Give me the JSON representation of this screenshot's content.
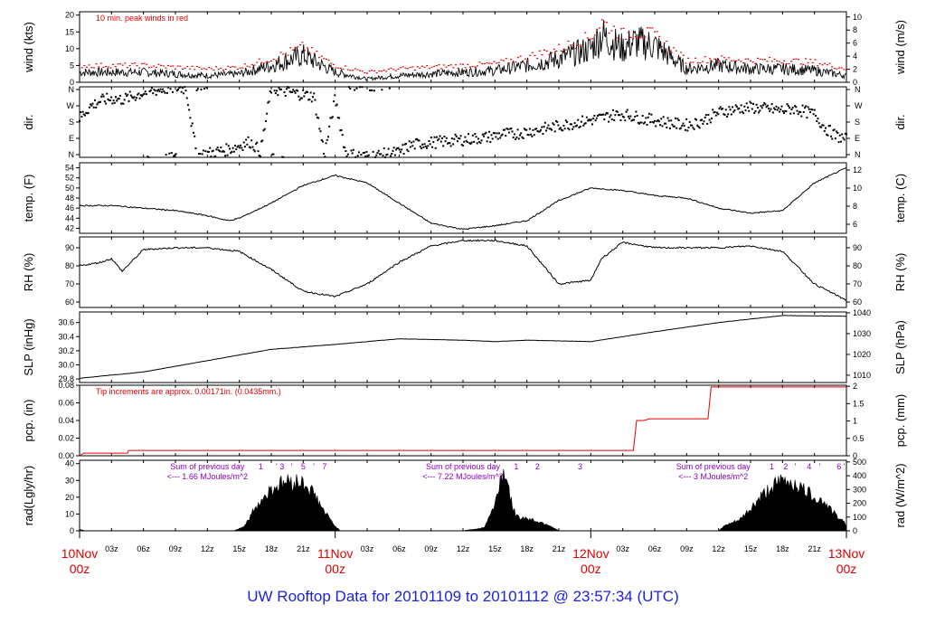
{
  "title": "UW Rooftop Data for 20101109  to  20101112 @ 23:57:34  (UTC)",
  "colors": {
    "title": "#1d22e0",
    "peak": "#e00000",
    "annotation": "#8a00c8",
    "precip": "#e00000",
    "data": "#000000"
  },
  "time_axis": {
    "hours_total": 72,
    "minor_labels": [
      "03z",
      "06z",
      "09z",
      "12z",
      "15z",
      "18z",
      "21z"
    ],
    "major_labels": [
      {
        "day": "10Nov",
        "hour": "00z"
      },
      {
        "day": "11Nov",
        "hour": "00z"
      },
      {
        "day": "12Nov",
        "hour": "00z"
      },
      {
        "day": "13Nov",
        "hour": "00z"
      }
    ]
  },
  "chart_data": [
    {
      "id": "wind",
      "type": "line",
      "ylabel": "wind (kts)",
      "ylabel_right": "wind (m/s)",
      "ylim": [
        0,
        21
      ],
      "yticks": [
        0,
        5,
        10,
        15,
        20
      ],
      "right_ticks": [
        0,
        2,
        4,
        6,
        8,
        10
      ],
      "annotation": "10 min. peak winds in red",
      "series": [
        {
          "name": "wind",
          "x": [
            0,
            3,
            6,
            9,
            12,
            15,
            18,
            21,
            24,
            27,
            30,
            33,
            36,
            39,
            42,
            45,
            48,
            49,
            50,
            51,
            52,
            54,
            57,
            60,
            63,
            66,
            69,
            72
          ],
          "y": [
            3,
            3,
            3,
            2.5,
            2,
            2.5,
            5,
            8,
            3,
            1,
            2,
            2.5,
            3,
            3.5,
            5,
            7,
            10,
            14,
            12,
            10,
            12,
            11,
            4,
            5,
            4,
            4,
            3.5,
            2
          ]
        },
        {
          "name": "10 min. peak winds",
          "x": [
            0,
            3,
            6,
            9,
            12,
            15,
            18,
            21,
            24,
            27,
            30,
            33,
            36,
            39,
            42,
            45,
            48,
            49,
            50,
            51,
            52,
            54,
            57,
            60,
            63,
            66,
            69,
            72
          ],
          "y": [
            5,
            5,
            5,
            4.5,
            4,
            4.5,
            7,
            10.5,
            5,
            3,
            4,
            4.5,
            5,
            5.5,
            7.5,
            10,
            13.5,
            18,
            16,
            14,
            15,
            14,
            6.5,
            7,
            6.5,
            6.5,
            6,
            4
          ]
        }
      ]
    },
    {
      "id": "dir",
      "type": "scatter",
      "ylabel": "dir.",
      "ylabel_right": "dir.",
      "ylim": [
        0,
        360
      ],
      "ytick_labels": [
        "N",
        "E",
        "S",
        "W",
        "N"
      ],
      "series": [
        {
          "name": "direction",
          "x": [
            0,
            1,
            2,
            3,
            4,
            5,
            6,
            7,
            8,
            9,
            10,
            11,
            12,
            13,
            14,
            15,
            16,
            17,
            18,
            19,
            20,
            21,
            22,
            23,
            24,
            25,
            26,
            27,
            28,
            29,
            30,
            31,
            32,
            33,
            34,
            35,
            36,
            37,
            38,
            39,
            40,
            41,
            42,
            43,
            44,
            45,
            46,
            47,
            48,
            49,
            50,
            51,
            52,
            53,
            54,
            55,
            56,
            57,
            58,
            59,
            60,
            61,
            62,
            63,
            64,
            65,
            66,
            67,
            68,
            69,
            70,
            71,
            72
          ],
          "y": [
            200,
            260,
            290,
            300,
            295,
            310,
            330,
            340,
            350,
            355,
            350,
            10,
            20,
            30,
            40,
            60,
            80,
            30,
            350,
            340,
            330,
            320,
            310,
            15,
            300,
            20,
            10,
            5,
            10,
            20,
            25,
            60,
            70,
            75,
            80,
            85,
            90,
            95,
            100,
            110,
            120,
            120,
            130,
            140,
            150,
            160,
            170,
            180,
            190,
            200,
            215,
            220,
            210,
            195,
            190,
            180,
            170,
            165,
            175,
            200,
            230,
            240,
            250,
            255,
            250,
            245,
            240,
            250,
            235,
            220,
            150,
            110,
            90
          ]
        }
      ]
    },
    {
      "id": "temp",
      "type": "line",
      "ylabel": "temp. (F)",
      "ylabel_right": "temp. (C)",
      "ylim": [
        41,
        55
      ],
      "yticks": [
        42,
        44,
        46,
        48,
        50,
        52,
        54
      ],
      "right_ticks": [
        6,
        8,
        10,
        12
      ],
      "series": [
        {
          "name": "temperature",
          "x": [
            0,
            3,
            6,
            9,
            12,
            14,
            15,
            18,
            21,
            24,
            27,
            30,
            33,
            36,
            39,
            42,
            45,
            48,
            51,
            54,
            57,
            60,
            63,
            66,
            69,
            72
          ],
          "y": [
            46.5,
            46.5,
            46,
            45.5,
            44.5,
            43.5,
            44,
            47,
            50.5,
            52.5,
            51,
            47,
            43,
            41.8,
            42.5,
            43.5,
            47.5,
            50,
            49.5,
            48.5,
            48,
            46,
            45,
            45.5,
            51,
            54
          ]
        }
      ]
    },
    {
      "id": "rh",
      "type": "line",
      "ylabel": "RH (%)",
      "ylabel_right": "RH (%)",
      "ylim": [
        57,
        96
      ],
      "yticks": [
        60,
        70,
        80,
        90
      ],
      "right_ticks": [
        60,
        70,
        80,
        90
      ],
      "series": [
        {
          "name": "relative humidity",
          "x": [
            0,
            2,
            3,
            4,
            6,
            9,
            12,
            15,
            18,
            21,
            24,
            27,
            30,
            33,
            36,
            39,
            42,
            45,
            48,
            49,
            51,
            54,
            57,
            60,
            63,
            66,
            69,
            72
          ],
          "y": [
            80,
            82,
            84,
            77,
            89,
            90,
            90,
            88,
            78,
            66,
            63,
            70,
            82,
            91,
            94,
            94,
            91,
            70,
            72,
            84,
            93,
            90,
            90,
            90,
            91,
            88,
            70,
            61
          ]
        }
      ]
    },
    {
      "id": "slp",
      "type": "line",
      "ylabel": "SLP (inHg)",
      "ylabel_right": "SLP (hPa)",
      "ylim": [
        29.75,
        30.75
      ],
      "yticks": [
        29.8,
        30.0,
        30.2,
        30.4,
        30.6
      ],
      "right_ticks": [
        1010,
        1020,
        1030,
        1040
      ],
      "series": [
        {
          "name": "sea level pressure",
          "x": [
            0,
            6,
            12,
            18,
            24,
            30,
            36,
            39,
            42,
            48,
            54,
            60,
            66,
            72
          ],
          "y": [
            29.81,
            29.9,
            30.06,
            30.22,
            30.29,
            30.37,
            30.35,
            30.33,
            30.35,
            30.33,
            30.47,
            30.6,
            30.7,
            30.69
          ]
        }
      ]
    },
    {
      "id": "pcp",
      "type": "line",
      "ylabel": "pcp. (in)",
      "ylabel_right": "pcp. (mm)",
      "ylim": [
        0,
        0.08
      ],
      "yticks": [
        0.0,
        0.02,
        0.04,
        0.06,
        0.08
      ],
      "right_ticks": [
        0,
        0.5,
        1,
        1.5,
        2
      ],
      "annotation": "Tip increments are approx. 0.00171in. (0.0435mm.)",
      "series": [
        {
          "name": "precipitation",
          "x": [
            0,
            0.4,
            4.5,
            4.6,
            52,
            52.3,
            53,
            53.5,
            59,
            59.3,
            72
          ],
          "y": [
            0,
            0.003,
            0.003,
            0.006,
            0.006,
            0.04,
            0.04,
            0.042,
            0.042,
            0.078,
            0.078
          ]
        }
      ]
    },
    {
      "id": "rad",
      "type": "area",
      "ylabel": "rad(Lgly/hr)",
      "ylabel_right": "rad (W/m^2)",
      "ylim": [
        0,
        42
      ],
      "yticks": [
        0,
        10,
        20,
        30,
        40
      ],
      "right_ticks": [
        0,
        100,
        200,
        300,
        400,
        500
      ],
      "series": [
        {
          "name": "radiation",
          "x": [
            0,
            0.5,
            14.5,
            15.5,
            16.5,
            18,
            19.5,
            21,
            22,
            23,
            24,
            24.5,
            36,
            38,
            38.5,
            39,
            39.5,
            40,
            40.5,
            41,
            42,
            43,
            44,
            44.5,
            45,
            60,
            60.5,
            62,
            63,
            64,
            65,
            66,
            67,
            68,
            69,
            70,
            71,
            72
          ],
          "y": [
            1,
            0,
            0,
            3,
            15,
            27,
            32,
            31,
            24,
            12,
            3,
            0,
            0,
            2,
            10,
            16,
            34,
            38,
            19,
            9,
            8,
            6,
            4,
            2,
            0,
            0,
            3,
            7,
            14,
            22,
            28,
            32,
            31,
            26,
            22,
            18,
            10,
            4
          ]
        }
      ],
      "annotations": [
        {
          "line1": "Sum of previous day",
          "line2": "<--- 1.66 MJoules/m^2",
          "hour": 12
        },
        {
          "line1": "Sum of previous day",
          "line2": "<--- 7.22 MJoules/m^2",
          "hour": 36
        },
        {
          "line1": "Sum of previous day",
          "line2": "<--- 3 MJoules/m^2",
          "hour": 59.5
        }
      ],
      "hour_marks": [
        {
          "hour": 17,
          "label": "1"
        },
        {
          "hour": 18.5,
          "label": "'"
        },
        {
          "hour": 19,
          "label": "3"
        },
        {
          "hour": 19.9,
          "label": "'"
        },
        {
          "hour": 21,
          "label": "5"
        },
        {
          "hour": 22,
          "label": "'"
        },
        {
          "hour": 23,
          "label": "7"
        },
        {
          "hour": 41,
          "label": "1"
        },
        {
          "hour": 43,
          "label": "2"
        },
        {
          "hour": 47,
          "label": "3"
        },
        {
          "hour": 65,
          "label": "1"
        },
        {
          "hour": 66.3,
          "label": "2"
        },
        {
          "hour": 67.2,
          "label": "'"
        },
        {
          "hour": 68.5,
          "label": "4"
        },
        {
          "hour": 69.5,
          "label": "'"
        },
        {
          "hour": 71.3,
          "label": "6"
        },
        {
          "hour": 71.8,
          "label": "'"
        }
      ]
    }
  ]
}
